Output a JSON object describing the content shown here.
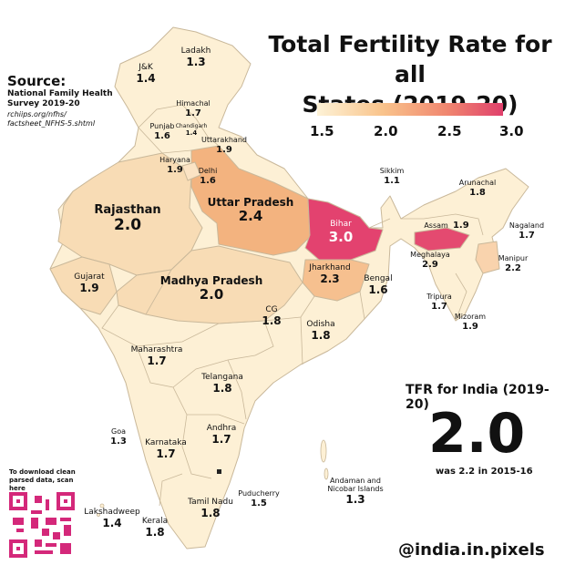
{
  "title_line1": "Total Fertility Rate for all",
  "title_line2": "States (2019-20)",
  "source": {
    "heading": "Source:",
    "line1": "National Family Health",
    "line2": "Survey 2019-20",
    "url1": "rchiips.org/nfhs/",
    "url2": "factsheet_NFHS-5.shtml"
  },
  "legend": {
    "ticks": [
      "1.5",
      "2.0",
      "2.5",
      "3.0"
    ],
    "colors": [
      "#fdf2d6",
      "#f9c48c",
      "#f0866f",
      "#e0406c"
    ]
  },
  "india": {
    "heading": "TFR for India (2019-20)",
    "value": "2.0",
    "sub": "was 2.2 in 2015-16"
  },
  "download": {
    "line1": "To download clean",
    "line2": "parsed data, scan here"
  },
  "handle": "@india.in.pixels",
  "states": [
    {
      "name": "Ladakh",
      "tfr": "1.3"
    },
    {
      "name": "J&K",
      "tfr": "1.4"
    },
    {
      "name": "Himachal",
      "tfr": "1.7"
    },
    {
      "name": "Punjab",
      "tfr": "1.6"
    },
    {
      "name": "Chandigarh",
      "tfr": "1.4"
    },
    {
      "name": "Uttarakhand",
      "tfr": "1.9"
    },
    {
      "name": "Haryana",
      "tfr": "1.9"
    },
    {
      "name": "Delhi",
      "tfr": "1.6"
    },
    {
      "name": "Rajasthan",
      "tfr": "2.0"
    },
    {
      "name": "Uttar Pradesh",
      "tfr": "2.4"
    },
    {
      "name": "Bihar",
      "tfr": "3.0"
    },
    {
      "name": "Sikkim",
      "tfr": "1.1"
    },
    {
      "name": "Arunachal",
      "tfr": "1.8"
    },
    {
      "name": "Assam",
      "tfr": "1.9"
    },
    {
      "name": "Nagaland",
      "tfr": "1.7"
    },
    {
      "name": "Meghalaya",
      "tfr": "2.9"
    },
    {
      "name": "Manipur",
      "tfr": "2.2"
    },
    {
      "name": "Tripura",
      "tfr": "1.7"
    },
    {
      "name": "Mizoram",
      "tfr": "1.9"
    },
    {
      "name": "Gujarat",
      "tfr": "1.9"
    },
    {
      "name": "Madhya Pradesh",
      "tfr": "2.0"
    },
    {
      "name": "Jharkhand",
      "tfr": "2.3"
    },
    {
      "name": "Bengal",
      "tfr": "1.6"
    },
    {
      "name": "CG",
      "tfr": "1.8"
    },
    {
      "name": "Odisha",
      "tfr": "1.8"
    },
    {
      "name": "Maharashtra",
      "tfr": "1.7"
    },
    {
      "name": "Telangana",
      "tfr": "1.8"
    },
    {
      "name": "Goa",
      "tfr": "1.3"
    },
    {
      "name": "Karnataka",
      "tfr": "1.7"
    },
    {
      "name": "Andhra",
      "tfr": "1.7"
    },
    {
      "name": "Tamil Nadu",
      "tfr": "1.8"
    },
    {
      "name": "Kerala",
      "tfr": "1.8"
    },
    {
      "name": "Puducherry",
      "tfr": "1.5"
    },
    {
      "name": "Lakshadweep",
      "tfr": "1.4"
    },
    {
      "name": "Andaman and",
      "tfr": ""
    },
    {
      "name": "Nicobar Islands",
      "tfr": "1.3"
    }
  ]
}
